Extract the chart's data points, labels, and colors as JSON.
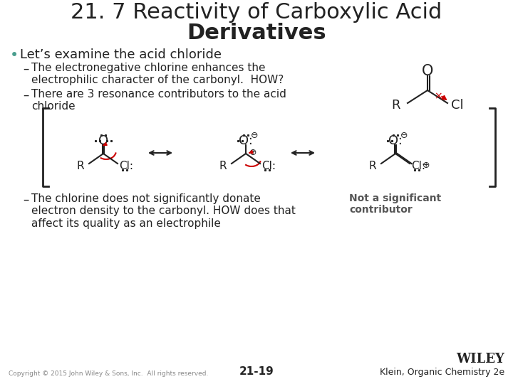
{
  "title_line1": "21. 7 Reactivity of Carboxylic Acid",
  "title_line2": "Derivatives",
  "title_fontsize": 22,
  "title_color": "#222222",
  "bg_color": "#ffffff",
  "bullet_color": "#4a9e8e",
  "text_color": "#222222",
  "red_color": "#cc0000",
  "gray_bold_color": "#555555",
  "bullet1": "Let’s examine the acid chloride",
  "sub1": "The electronegative chlorine enhances the\nelectrophilic character of the carbonyl.  HOW?",
  "sub2": "There are 3 resonance contributors to the acid\nchloride",
  "sub3": "The chlorine does not significantly donate\nelectron density to the carbonyl. HOW does that\naffect its quality as an electrophile",
  "note": "Not a significant\ncontributor",
  "copyright": "Copyright © 2015 John Wiley & Sons, Inc.  All rights reserved.",
  "page": "21-19",
  "publisher": "WILEY",
  "attribution": "Klein, Organic Chemistry 2e"
}
